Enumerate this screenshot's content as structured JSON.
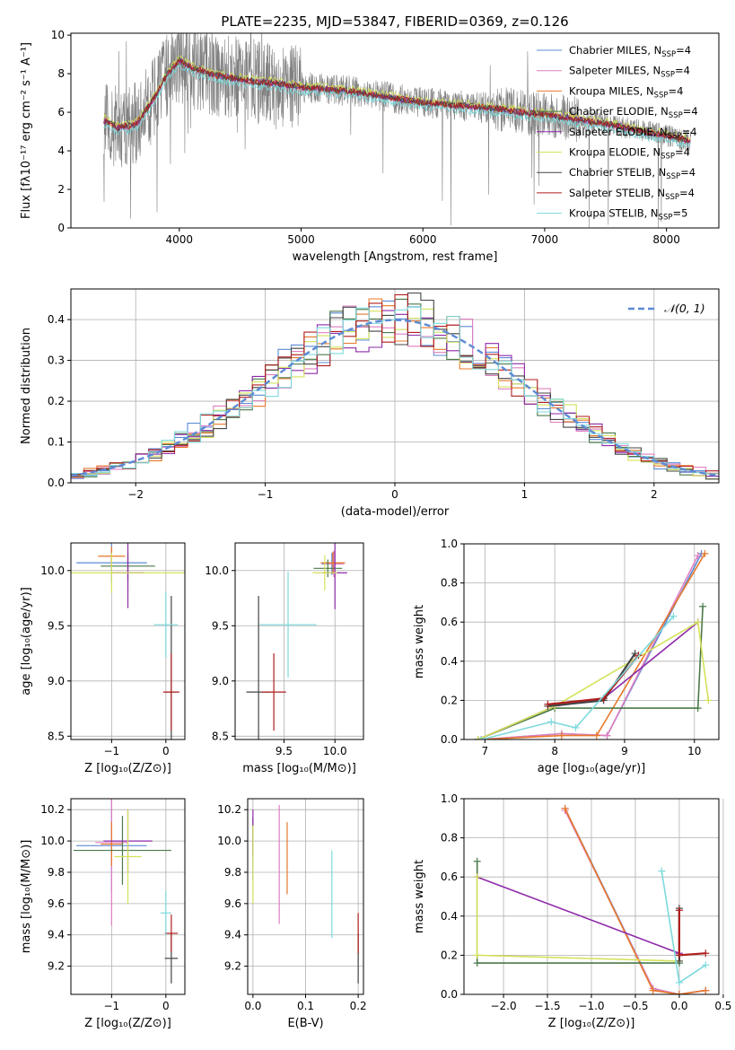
{
  "figure_title": "PLATE=2235, MJD=53847, FIBERID=0369, z=0.126",
  "colors": [
    "#5b8bd6",
    "#e07fc0",
    "#e8782a",
    "#4a7a4a",
    "#8e2aa8",
    "#d4e25a",
    "#444444",
    "#b01e1e",
    "#7dd9dc"
  ],
  "chart_data": [
    {
      "id": "spectrum",
      "type": "line",
      "xlabel": "wavelength [Angstrom, rest frame]",
      "ylabel": "Flux [fλ10⁻¹⁷ erg cm⁻² s⁻¹ A⁻¹]",
      "xlim": [
        3110,
        8430
      ],
      "ylim": [
        0,
        10.1
      ],
      "xticks": [
        4000,
        5000,
        6000,
        7000,
        8000
      ],
      "yticks": [
        0,
        2,
        4,
        6,
        8,
        10
      ],
      "grid": false,
      "legend_position": "top-right",
      "legend": [
        "Chabrier MILES, N_SSP=4",
        "Salpeter MILES, N_SSP=4",
        "Kroupa MILES, N_SSP=4",
        "Chabrier ELODIE, N_SSP=4",
        "Salpeter ELODIE, N_SSP=4",
        "Kroupa ELODIE, N_SSP=4",
        "Chabrier STELIB, N_SSP=4",
        "Salpeter STELIB, N_SSP=4",
        "Kroupa STELIB, N_SSP=5"
      ],
      "model_x": [
        3380,
        3500,
        3650,
        3800,
        3900,
        4000,
        4100,
        4250,
        4400,
        4600,
        4800,
        5000,
        5200,
        5400,
        5600,
        5800,
        6000,
        6200,
        6400,
        6600,
        6800,
        7000,
        7200,
        7400,
        7600,
        7800,
        8000,
        8200
      ],
      "model_y": [
        5.6,
        5.2,
        5.4,
        6.8,
        8.0,
        8.7,
        8.3,
        8.0,
        7.8,
        7.6,
        7.5,
        7.3,
        7.2,
        7.1,
        6.9,
        6.7,
        6.5,
        6.4,
        6.3,
        6.2,
        6.0,
        5.9,
        5.7,
        5.5,
        5.3,
        5.0,
        4.8,
        4.5
      ],
      "data_x_range": [
        3380,
        8200
      ]
    },
    {
      "id": "residual_histogram",
      "type": "step",
      "xlabel": "(data-model)/error",
      "ylabel": "Normed distribution",
      "xlim": [
        -2.5,
        2.5
      ],
      "ylim": [
        0,
        0.475
      ],
      "xticks": [
        -2,
        -1,
        0,
        1,
        2
      ],
      "yticks": [
        0,
        0.1,
        0.2,
        0.3,
        0.4
      ],
      "grid": true,
      "legend_position": "top-right",
      "reference_curve": "𝒩(0, 1)",
      "bin_width": 0.1
    },
    {
      "id": "age_vs_Z",
      "type": "errorbar",
      "xlabel": "Z [log₁₀(Z/Z⊙)]",
      "ylabel": "age  [log₁₀(age/yr)]",
      "xlim": [
        -1.75,
        0.35
      ],
      "ylim": [
        8.47,
        10.25
      ],
      "xticks": [
        -1,
        0
      ],
      "yticks": [
        8.5,
        9.0,
        9.5,
        10.0
      ],
      "grid": true,
      "points": [
        {
          "x": -1.0,
          "y": 10.07,
          "xerr": 0.65,
          "yerr": 0.18
        },
        {
          "x": -0.7,
          "y": 9.98,
          "xerr": 0.3,
          "yerr": 0.16
        },
        {
          "x": -1.0,
          "y": 10.13,
          "xerr": 0.25,
          "yerr": 0.09
        },
        {
          "x": -0.7,
          "y": 10.04,
          "xerr": 0.5,
          "yerr": 0.12
        },
        {
          "x": -0.7,
          "y": 9.98,
          "xerr": 0.3,
          "yerr": 0.32
        },
        {
          "x": -1.0,
          "y": 9.98,
          "xerr": 1.7,
          "yerr": 0.18
        },
        {
          "x": 0.1,
          "y": 8.9,
          "xerr": 0.1,
          "yerr": 0.87
        },
        {
          "x": 0.1,
          "y": 8.9,
          "xerr": 0.15,
          "yerr": 0.35
        },
        {
          "x": 0.0,
          "y": 9.51,
          "xerr": 0.22,
          "yerr": 0.3
        }
      ]
    },
    {
      "id": "age_vs_mass",
      "type": "errorbar",
      "xlabel": "mass [log₁₀(M/M⊙)]",
      "ylabel": "",
      "xlim": [
        9.02,
        10.28
      ],
      "ylim": [
        8.47,
        10.25
      ],
      "xticks": [
        9.5,
        10.0
      ],
      "yticks": [
        8.5,
        9.0,
        9.5,
        10.0
      ],
      "grid": true,
      "points": [
        {
          "x": 9.97,
          "y": 10.06,
          "xerr": 0.1,
          "yerr": 0.1
        },
        {
          "x": 9.99,
          "y": 10.06,
          "xerr": 0.1,
          "yerr": 0.12
        },
        {
          "x": 9.98,
          "y": 10.07,
          "xerr": 0.12,
          "yerr": 0.1
        },
        {
          "x": 9.93,
          "y": 10.02,
          "xerr": 0.14,
          "yerr": 0.08
        },
        {
          "x": 10.0,
          "y": 9.98,
          "xerr": 0.12,
          "yerr": 0.33
        },
        {
          "x": 9.9,
          "y": 9.98,
          "xerr": 0.12,
          "yerr": 0.16
        },
        {
          "x": 9.25,
          "y": 8.9,
          "xerr": 0.12,
          "yerr": 0.87
        },
        {
          "x": 9.4,
          "y": 8.9,
          "xerr": 0.12,
          "yerr": 0.35
        },
        {
          "x": 9.54,
          "y": 9.51,
          "xerr": 0.28,
          "yerr": 0.48
        }
      ]
    },
    {
      "id": "massweight_vs_age",
      "type": "line",
      "xlabel": "age  [log₁₀(age/yr)]",
      "ylabel": "mass weight",
      "xlim": [
        6.7,
        10.35
      ],
      "ylim": [
        0,
        1.0
      ],
      "xticks": [
        7,
        8,
        9,
        10
      ],
      "yticks": [
        0.0,
        0.2,
        0.4,
        0.6,
        0.8,
        1.0
      ],
      "grid": true,
      "series": [
        {
          "x": [
            6.95,
            8.1,
            8.75,
            10.1
          ],
          "y": [
            0.0,
            0.03,
            0.02,
            0.95
          ]
        },
        {
          "x": [
            6.95,
            8.1,
            8.75,
            10.05
          ],
          "y": [
            0.0,
            0.03,
            0.02,
            0.94
          ]
        },
        {
          "x": [
            6.95,
            8.1,
            8.6,
            10.15
          ],
          "y": [
            0.0,
            0.02,
            0.02,
            0.95
          ]
        },
        {
          "x": [
            6.9,
            8.0,
            10.05,
            10.12
          ],
          "y": [
            0.0,
            0.16,
            0.16,
            0.68
          ]
        },
        {
          "x": [
            6.9,
            8.0,
            8.7,
            10.05
          ],
          "y": [
            0.0,
            0.17,
            0.21,
            0.6
          ]
        },
        {
          "x": [
            6.9,
            8.0,
            10.05,
            10.2
          ],
          "y": [
            0.0,
            0.17,
            0.6,
            0.2
          ]
        },
        {
          "x": [
            7.9,
            8.7,
            9.15
          ],
          "y": [
            0.17,
            0.2,
            0.44
          ]
        },
        {
          "x": [
            7.9,
            8.7,
            9.2
          ],
          "y": [
            0.18,
            0.21,
            0.43
          ]
        },
        {
          "x": [
            6.95,
            7.95,
            8.3,
            9.7
          ],
          "y": [
            0.0,
            0.09,
            0.06,
            0.63
          ]
        }
      ]
    },
    {
      "id": "mass_vs_Z",
      "type": "errorbar",
      "xlabel": "Z [log₁₀(Z/Z⊙)]",
      "ylabel": "mass [log₁₀(M/M⊙)]",
      "xlim": [
        -1.75,
        0.35
      ],
      "ylim": [
        9.02,
        10.27
      ],
      "xticks": [
        -1,
        0
      ],
      "yticks": [
        9.2,
        9.4,
        9.6,
        9.8,
        10.0,
        10.2
      ],
      "grid": true,
      "points": [
        {
          "x": -1.0,
          "y": 9.97,
          "xerr": 0.65,
          "yerr": 0.3
        },
        {
          "x": -1.0,
          "y": 9.99,
          "xerr": 0.3,
          "yerr": 0.53
        },
        {
          "x": -1.0,
          "y": 9.98,
          "xerr": 0.2,
          "yerr": 0.14
        },
        {
          "x": -0.8,
          "y": 9.94,
          "xerr": 0.9,
          "yerr": 0.22
        },
        {
          "x": -0.7,
          "y": 10.0,
          "xerr": 0.45,
          "yerr": 0.2
        },
        {
          "x": -0.7,
          "y": 9.9,
          "xerr": 0.25,
          "yerr": 0.3
        },
        {
          "x": 0.1,
          "y": 9.25,
          "xerr": 0.12,
          "yerr": 0.16
        },
        {
          "x": 0.1,
          "y": 9.41,
          "xerr": 0.12,
          "yerr": 0.12
        },
        {
          "x": 0.0,
          "y": 9.54,
          "xerr": 0.1,
          "yerr": 0.14
        }
      ]
    },
    {
      "id": "mass_vs_EBV",
      "type": "errorbar",
      "xlabel": "E(B-V)",
      "ylabel": "",
      "xlim": [
        -0.01,
        0.21
      ],
      "ylim": [
        9.02,
        10.27
      ],
      "xticks": [
        0.0,
        0.1,
        0.2
      ],
      "yticks": [
        9.2,
        9.4,
        9.6,
        9.8,
        10.0,
        10.2
      ],
      "grid": true,
      "points": [
        {
          "x": 0.0,
          "y": 9.95,
          "xerr": 0,
          "yerr": 0.2
        },
        {
          "x": 0.05,
          "y": 9.85,
          "xerr": 0,
          "yerr": 0.38
        },
        {
          "x": 0.065,
          "y": 9.89,
          "xerr": 0,
          "yerr": 0.23
        },
        {
          "x": 0.0,
          "y": 10.05,
          "xerr": 0,
          "yerr": 0.1
        },
        {
          "x": 0.0,
          "y": 10.05,
          "xerr": 0,
          "yerr": 0.15
        },
        {
          "x": 0.0,
          "y": 9.85,
          "xerr": 0,
          "yerr": 0.25
        },
        {
          "x": 0.2,
          "y": 9.25,
          "xerr": 0,
          "yerr": 0.16
        },
        {
          "x": 0.2,
          "y": 9.41,
          "xerr": 0,
          "yerr": 0.13
        },
        {
          "x": 0.15,
          "y": 9.66,
          "xerr": 0,
          "yerr": 0.28
        }
      ]
    },
    {
      "id": "massweight_vs_Z",
      "type": "line",
      "xlabel": "Z [log₁₀(Z/Z⊙)]",
      "ylabel": "mass weight",
      "xlim": [
        -2.45,
        0.45
      ],
      "ylim": [
        0,
        1.0
      ],
      "xticks": [
        -2.0,
        -1.5,
        -1.0,
        -0.5,
        0.0,
        0.5
      ],
      "yticks": [
        0.0,
        0.2,
        0.4,
        0.6,
        0.8,
        1.0
      ],
      "grid": true,
      "series": [
        {
          "x": [
            -1.3,
            -0.3,
            0.0,
            0.3
          ],
          "y": [
            0.95,
            0.03,
            0.0,
            0.02
          ]
        },
        {
          "x": [
            -1.3,
            -0.3,
            0.0,
            0.3
          ],
          "y": [
            0.94,
            0.03,
            0.0,
            0.02
          ]
        },
        {
          "x": [
            -1.3,
            -0.3,
            0.0,
            0.3
          ],
          "y": [
            0.95,
            0.02,
            0.0,
            0.02
          ]
        },
        {
          "x": [
            -2.3,
            -2.3,
            0.0
          ],
          "y": [
            0.68,
            0.16,
            0.16
          ]
        },
        {
          "x": [
            -2.3,
            0.0
          ],
          "y": [
            0.6,
            0.21
          ]
        },
        {
          "x": [
            -2.3,
            -2.3,
            0.0
          ],
          "y": [
            0.6,
            0.2,
            0.17
          ]
        },
        {
          "x": [
            0.0,
            0.0,
            0.0
          ],
          "y": [
            0.44,
            0.2,
            0.17
          ]
        },
        {
          "x": [
            0.0,
            0.0,
            0.3
          ],
          "y": [
            0.43,
            0.2,
            0.21
          ]
        },
        {
          "x": [
            -0.2,
            0.0,
            0.3
          ],
          "y": [
            0.63,
            0.06,
            0.15
          ]
        }
      ]
    }
  ]
}
